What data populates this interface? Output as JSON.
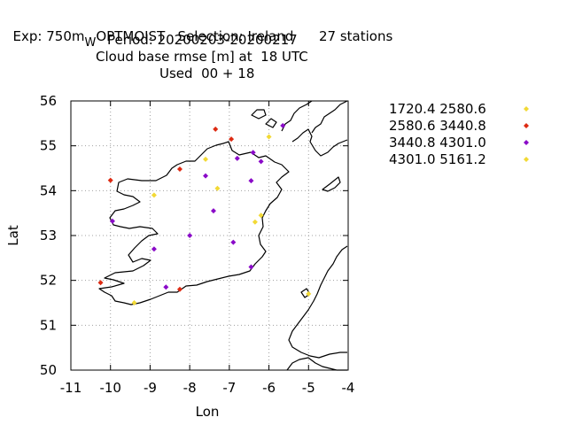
{
  "header": {
    "exp_prefix": "Exp: 750m",
    "exp_sub": "W",
    "exp_rest": "OPTMOIST   Selection: Ireland      27 stations",
    "period": "Period: 20200203-20200217",
    "metric": "Cloud base rmse [m] at  18 UTC",
    "used": "Used  00 + 18"
  },
  "chart_data": {
    "type": "scatter",
    "xlabel": "Lon",
    "ylabel": "Lat",
    "xlim": [
      -11,
      -4
    ],
    "ylim": [
      50,
      56
    ],
    "xticks": [
      -11,
      -10,
      -9,
      -8,
      -7,
      -6,
      -5,
      -4
    ],
    "yticks": [
      50,
      51,
      52,
      53,
      54,
      55,
      56
    ],
    "grid": true,
    "legend_position": "right",
    "series": [
      {
        "name": "1720.4 2580.6",
        "color": "#f2d935",
        "points": [
          {
            "x": -7.6,
            "y": 54.7
          },
          {
            "x": -6.0,
            "y": 55.2
          },
          {
            "x": -8.9,
            "y": 53.9
          },
          {
            "x": -7.3,
            "y": 54.05
          },
          {
            "x": -6.2,
            "y": 53.45
          },
          {
            "x": -6.35,
            "y": 53.3
          },
          {
            "x": -9.4,
            "y": 51.5
          },
          {
            "x": -5.0,
            "y": 51.7
          }
        ]
      },
      {
        "name": "2580.6 3440.8",
        "color": "#dd2a12",
        "points": [
          {
            "x": -7.35,
            "y": 55.37
          },
          {
            "x": -6.95,
            "y": 55.15
          },
          {
            "x": -8.25,
            "y": 54.48
          },
          {
            "x": -10.0,
            "y": 54.23
          },
          {
            "x": -10.25,
            "y": 51.95
          },
          {
            "x": -8.25,
            "y": 51.8
          }
        ]
      },
      {
        "name": "3440.8 4301.0",
        "color": "#8a0ac8",
        "points": [
          {
            "x": -5.65,
            "y": 55.45
          },
          {
            "x": -6.4,
            "y": 54.85
          },
          {
            "x": -6.8,
            "y": 54.72
          },
          {
            "x": -6.2,
            "y": 54.65
          },
          {
            "x": -7.6,
            "y": 54.33
          },
          {
            "x": -6.45,
            "y": 54.22
          },
          {
            "x": -9.95,
            "y": 53.32
          },
          {
            "x": -7.4,
            "y": 53.55
          },
          {
            "x": -8.0,
            "y": 53.0
          },
          {
            "x": -6.9,
            "y": 52.85
          },
          {
            "x": -8.9,
            "y": 52.7
          },
          {
            "x": -6.45,
            "y": 52.3
          },
          {
            "x": -8.6,
            "y": 51.85
          }
        ]
      }
    ],
    "legend": [
      {
        "label": "1720.4 2580.6",
        "color": "#f2d935"
      },
      {
        "label": "2580.6 3440.8",
        "color": "#dd2a12"
      },
      {
        "label": "3440.8 4301.0",
        "color": "#8a0ac8"
      },
      {
        "label": "4301.0 5161.2",
        "color": "#f2d935"
      }
    ]
  }
}
